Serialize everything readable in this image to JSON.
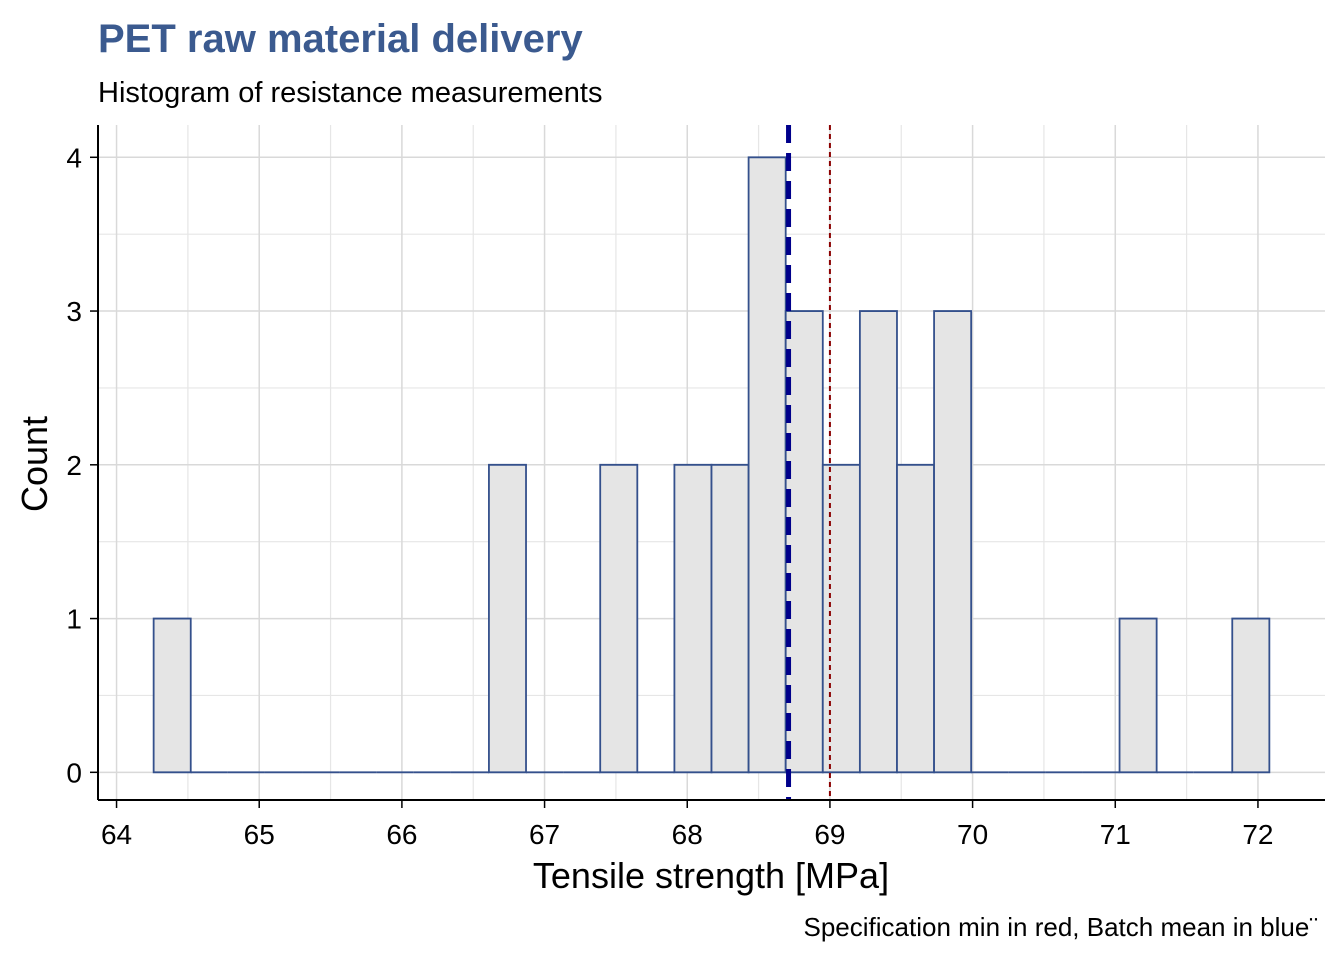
{
  "chart_data": {
    "type": "histogram",
    "title": "PET raw material delivery",
    "subtitle": "Histogram of resistance measurements",
    "x_label": "Tensile strength [MPa]",
    "y_label": "Count",
    "caption": "Specification min in red, Batch mean in blue¨",
    "bins": [
      64.26,
      64.52,
      64.78,
      65.04,
      65.3,
      65.56,
      65.82,
      66.08,
      66.34,
      66.61,
      66.87,
      67.13,
      67.39,
      67.65,
      67.91,
      68.17,
      68.43,
      68.69,
      68.95,
      69.21,
      69.47,
      69.73,
      69.99,
      70.25,
      70.51,
      70.77,
      71.03,
      71.29,
      71.55,
      71.82,
      72.08
    ],
    "values": [
      1,
      0,
      0,
      0,
      0,
      0,
      0,
      0,
      0,
      2,
      0,
      0,
      2,
      0,
      2,
      2,
      4,
      3,
      2,
      3,
      2,
      3,
      0,
      0,
      0,
      0,
      1,
      0,
      0,
      1
    ],
    "color": "#e5e5e5",
    "edge_color": "#34508c",
    "reference_lines": [
      {
        "value": 69.0,
        "color": "#8b0000",
        "style": "dotted"
      },
      {
        "value": 68.71,
        "color": "#00008b",
        "style": "dashed"
      }
    ],
    "xlim": [
      63.87,
      72.47
    ],
    "xticks": [
      64,
      65,
      66,
      67,
      68,
      69,
      70,
      71,
      72
    ],
    "ylim": [
      -0.18,
      4.21
    ],
    "yticks": [
      0,
      1,
      2,
      3,
      4
    ],
    "grid": true,
    "minor_grid": true
  }
}
